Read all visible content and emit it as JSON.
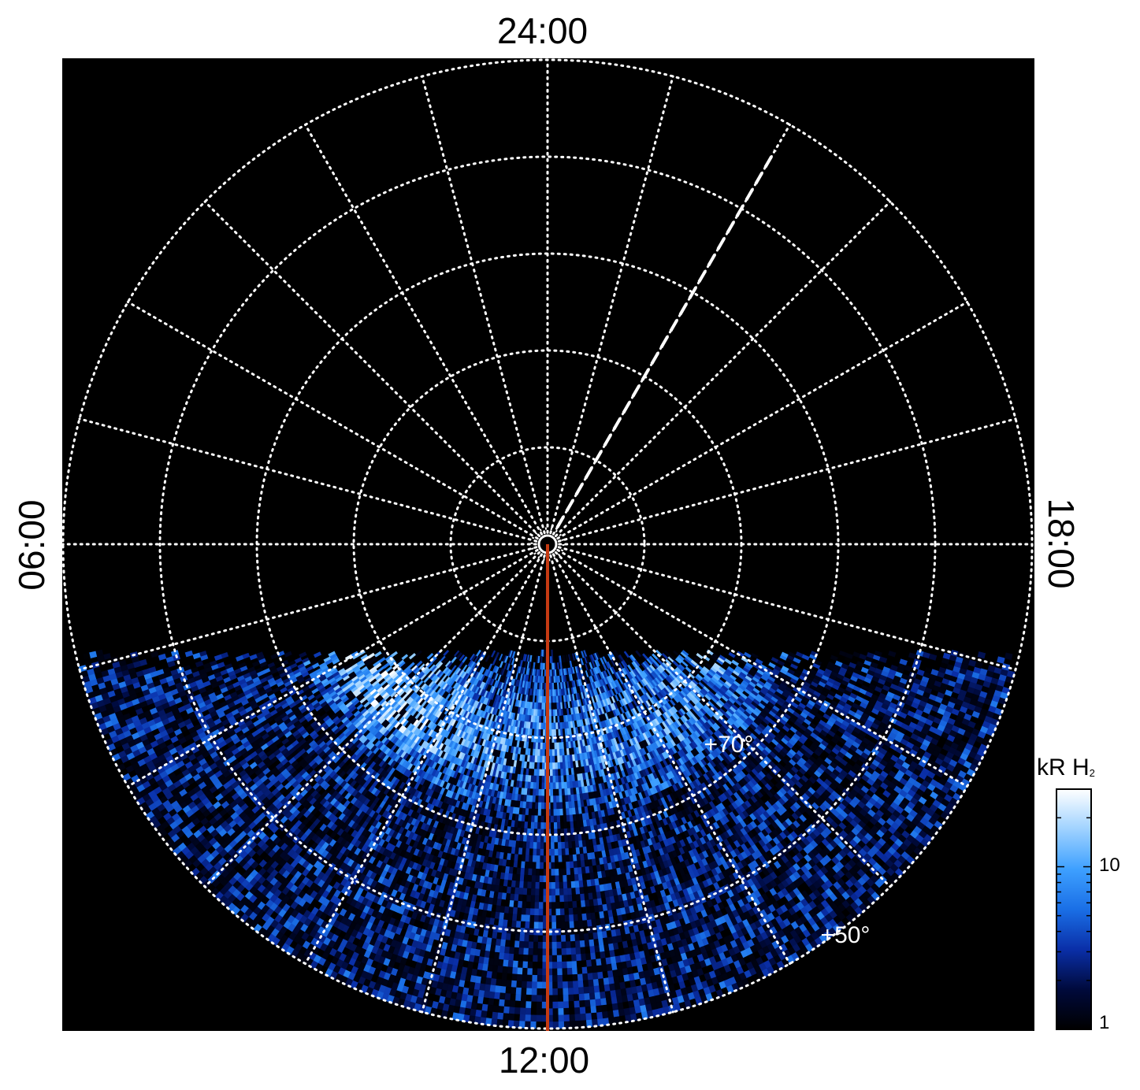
{
  "chart_data": {
    "type": "heatmap",
    "projection": "polar",
    "local_time_labels": {
      "top": "24:00",
      "bottom": "12:00",
      "left": "06:00",
      "right": "18:00"
    },
    "latitude_labels": [
      "+70°",
      "+50°"
    ],
    "latitude_circles_deg": [
      80,
      70,
      60,
      50,
      40
    ],
    "meridian_spacing_hours": 1,
    "reference_meridian_lt": 12,
    "dashed_meridian_lt": 22,
    "colorbar": {
      "title": "kR H",
      "title_subscript": "2",
      "scale": "log",
      "range": [
        1,
        30
      ],
      "tick_labels": [
        "1",
        "10"
      ],
      "colors": [
        "#000000",
        "#000a3c",
        "#0a2fa8",
        "#1a6fe6",
        "#3ea0ff",
        "#9fd2ff",
        "#ffffff"
      ]
    },
    "background": "#000000",
    "grid": "dotted",
    "grid_color": "#ffffff",
    "reference_line_color": "#c63a12"
  }
}
